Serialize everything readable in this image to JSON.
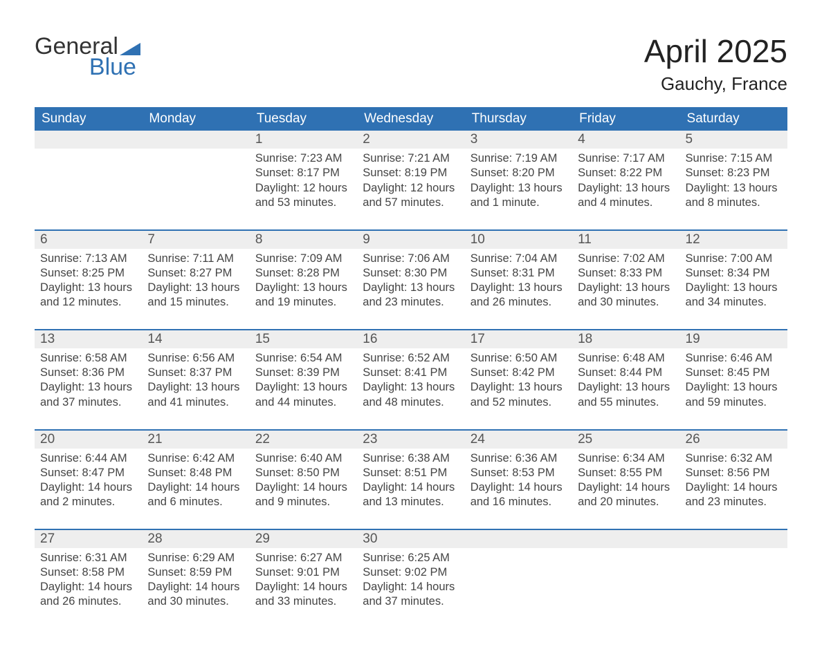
{
  "brand": {
    "word1": "General",
    "word2": "Blue"
  },
  "title": {
    "month": "April 2025",
    "location": "Gauchy, France"
  },
  "colors": {
    "brand_blue": "#2f71b3",
    "row_header_bg": "#eeeeee",
    "text": "#333333",
    "page_bg": "#ffffff"
  },
  "weekdays": [
    "Sunday",
    "Monday",
    "Tuesday",
    "Wednesday",
    "Thursday",
    "Friday",
    "Saturday"
  ],
  "weeks": [
    [
      {
        "n": "",
        "lines": []
      },
      {
        "n": "",
        "lines": []
      },
      {
        "n": "1",
        "lines": [
          "Sunrise: 7:23 AM",
          "Sunset: 8:17 PM",
          "Daylight: 12 hours and 53 minutes."
        ]
      },
      {
        "n": "2",
        "lines": [
          "Sunrise: 7:21 AM",
          "Sunset: 8:19 PM",
          "Daylight: 12 hours and 57 minutes."
        ]
      },
      {
        "n": "3",
        "lines": [
          "Sunrise: 7:19 AM",
          "Sunset: 8:20 PM",
          "Daylight: 13 hours and 1 minute."
        ]
      },
      {
        "n": "4",
        "lines": [
          "Sunrise: 7:17 AM",
          "Sunset: 8:22 PM",
          "Daylight: 13 hours and 4 minutes."
        ]
      },
      {
        "n": "5",
        "lines": [
          "Sunrise: 7:15 AM",
          "Sunset: 8:23 PM",
          "Daylight: 13 hours and 8 minutes."
        ]
      }
    ],
    [
      {
        "n": "6",
        "lines": [
          "Sunrise: 7:13 AM",
          "Sunset: 8:25 PM",
          "Daylight: 13 hours and 12 minutes."
        ]
      },
      {
        "n": "7",
        "lines": [
          "Sunrise: 7:11 AM",
          "Sunset: 8:27 PM",
          "Daylight: 13 hours and 15 minutes."
        ]
      },
      {
        "n": "8",
        "lines": [
          "Sunrise: 7:09 AM",
          "Sunset: 8:28 PM",
          "Daylight: 13 hours and 19 minutes."
        ]
      },
      {
        "n": "9",
        "lines": [
          "Sunrise: 7:06 AM",
          "Sunset: 8:30 PM",
          "Daylight: 13 hours and 23 minutes."
        ]
      },
      {
        "n": "10",
        "lines": [
          "Sunrise: 7:04 AM",
          "Sunset: 8:31 PM",
          "Daylight: 13 hours and 26 minutes."
        ]
      },
      {
        "n": "11",
        "lines": [
          "Sunrise: 7:02 AM",
          "Sunset: 8:33 PM",
          "Daylight: 13 hours and 30 minutes."
        ]
      },
      {
        "n": "12",
        "lines": [
          "Sunrise: 7:00 AM",
          "Sunset: 8:34 PM",
          "Daylight: 13 hours and 34 minutes."
        ]
      }
    ],
    [
      {
        "n": "13",
        "lines": [
          "Sunrise: 6:58 AM",
          "Sunset: 8:36 PM",
          "Daylight: 13 hours and 37 minutes."
        ]
      },
      {
        "n": "14",
        "lines": [
          "Sunrise: 6:56 AM",
          "Sunset: 8:37 PM",
          "Daylight: 13 hours and 41 minutes."
        ]
      },
      {
        "n": "15",
        "lines": [
          "Sunrise: 6:54 AM",
          "Sunset: 8:39 PM",
          "Daylight: 13 hours and 44 minutes."
        ]
      },
      {
        "n": "16",
        "lines": [
          "Sunrise: 6:52 AM",
          "Sunset: 8:41 PM",
          "Daylight: 13 hours and 48 minutes."
        ]
      },
      {
        "n": "17",
        "lines": [
          "Sunrise: 6:50 AM",
          "Sunset: 8:42 PM",
          "Daylight: 13 hours and 52 minutes."
        ]
      },
      {
        "n": "18",
        "lines": [
          "Sunrise: 6:48 AM",
          "Sunset: 8:44 PM",
          "Daylight: 13 hours and 55 minutes."
        ]
      },
      {
        "n": "19",
        "lines": [
          "Sunrise: 6:46 AM",
          "Sunset: 8:45 PM",
          "Daylight: 13 hours and 59 minutes."
        ]
      }
    ],
    [
      {
        "n": "20",
        "lines": [
          "Sunrise: 6:44 AM",
          "Sunset: 8:47 PM",
          "Daylight: 14 hours and 2 minutes."
        ]
      },
      {
        "n": "21",
        "lines": [
          "Sunrise: 6:42 AM",
          "Sunset: 8:48 PM",
          "Daylight: 14 hours and 6 minutes."
        ]
      },
      {
        "n": "22",
        "lines": [
          "Sunrise: 6:40 AM",
          "Sunset: 8:50 PM",
          "Daylight: 14 hours and 9 minutes."
        ]
      },
      {
        "n": "23",
        "lines": [
          "Sunrise: 6:38 AM",
          "Sunset: 8:51 PM",
          "Daylight: 14 hours and 13 minutes."
        ]
      },
      {
        "n": "24",
        "lines": [
          "Sunrise: 6:36 AM",
          "Sunset: 8:53 PM",
          "Daylight: 14 hours and 16 minutes."
        ]
      },
      {
        "n": "25",
        "lines": [
          "Sunrise: 6:34 AM",
          "Sunset: 8:55 PM",
          "Daylight: 14 hours and 20 minutes."
        ]
      },
      {
        "n": "26",
        "lines": [
          "Sunrise: 6:32 AM",
          "Sunset: 8:56 PM",
          "Daylight: 14 hours and 23 minutes."
        ]
      }
    ],
    [
      {
        "n": "27",
        "lines": [
          "Sunrise: 6:31 AM",
          "Sunset: 8:58 PM",
          "Daylight: 14 hours and 26 minutes."
        ]
      },
      {
        "n": "28",
        "lines": [
          "Sunrise: 6:29 AM",
          "Sunset: 8:59 PM",
          "Daylight: 14 hours and 30 minutes."
        ]
      },
      {
        "n": "29",
        "lines": [
          "Sunrise: 6:27 AM",
          "Sunset: 9:01 PM",
          "Daylight: 14 hours and 33 minutes."
        ]
      },
      {
        "n": "30",
        "lines": [
          "Sunrise: 6:25 AM",
          "Sunset: 9:02 PM",
          "Daylight: 14 hours and 37 minutes."
        ]
      },
      {
        "n": "",
        "lines": []
      },
      {
        "n": "",
        "lines": []
      },
      {
        "n": "",
        "lines": []
      }
    ]
  ]
}
